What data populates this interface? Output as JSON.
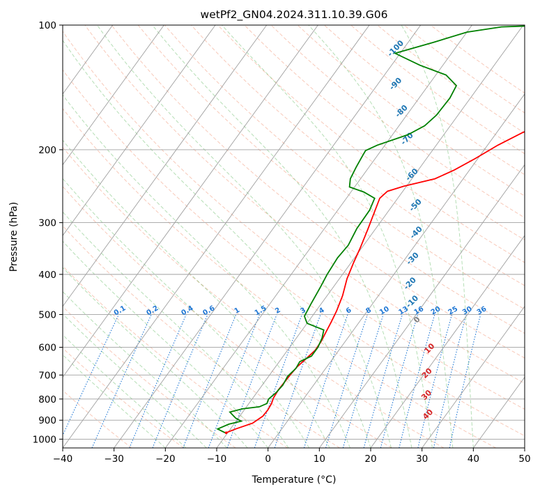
{
  "chart_data": {
    "type": "line",
    "title": "wetPf2_GN04.2024.311.10.39.G06",
    "xlabel": "Temperature (°C)",
    "ylabel": "Pressure (hPa)",
    "xlim": [
      -40,
      50
    ],
    "ylim_pressure": [
      1050,
      100
    ],
    "log_pressure_axis": true,
    "grid": true,
    "x_ticks": [
      -40,
      -30,
      -20,
      -10,
      0,
      10,
      20,
      30,
      40,
      50
    ],
    "x_tick_labels": [
      "−40",
      "−30",
      "−20",
      "−10",
      "0",
      "10",
      "20",
      "30",
      "40",
      "50"
    ],
    "y_ticks": [
      100,
      200,
      300,
      400,
      500,
      600,
      700,
      800,
      900,
      1000
    ],
    "y_tick_labels": [
      "100",
      "200",
      "300",
      "400",
      "500",
      "600",
      "700",
      "800",
      "900",
      "1000"
    ],
    "colors": {
      "temperature": "#ff0000",
      "dewpoint": "#008000",
      "isotherm_grid": "#a0a0a0",
      "dry_adiabat": "#f4a58a",
      "moist_adiabat": "#2ca02c",
      "mixing_ratio": "#1f77d4",
      "moist_label": "#1f77b4",
      "dry_label": "#d62728",
      "wetbulb": "#808080"
    },
    "series": [
      {
        "key": "temperature",
        "color": "#ff0000",
        "points": [
          [
            -10.3,
            965
          ],
          [
            -9,
            945
          ],
          [
            -6.5,
            915
          ],
          [
            -5.5,
            880
          ],
          [
            -5.4,
            850
          ],
          [
            -5.6,
            820
          ],
          [
            -6.0,
            795
          ],
          [
            -6.2,
            760
          ],
          [
            -6.0,
            700
          ],
          [
            -5.8,
            670
          ],
          [
            -5.2,
            640
          ],
          [
            -4.6,
            610
          ],
          [
            -4.7,
            580
          ],
          [
            -5.1,
            550
          ],
          [
            -5.5,
            520
          ],
          [
            -6.0,
            490
          ],
          [
            -7.0,
            450
          ],
          [
            -8.5,
            410
          ],
          [
            -9.5,
            375
          ],
          [
            -10.3,
            345
          ],
          [
            -11.5,
            310
          ],
          [
            -12.5,
            285
          ],
          [
            -13.5,
            262
          ],
          [
            -13.0,
            252
          ],
          [
            -10.5,
            245
          ],
          [
            -5.5,
            235
          ],
          [
            -3.0,
            224
          ],
          [
            -0.5,
            210
          ],
          [
            2.0,
            195
          ],
          [
            5.0,
            182
          ],
          [
            10.0,
            165
          ],
          [
            17.0,
            149
          ],
          [
            25.0,
            136
          ],
          [
            33.0,
            125
          ],
          [
            40.0,
            116
          ],
          [
            45.0,
            108
          ],
          [
            47.5,
            103
          ],
          [
            48.5,
            100
          ]
        ]
      },
      {
        "key": "dewpoint",
        "color": "#008000",
        "points": [
          [
            -10.5,
            965
          ],
          [
            -12.5,
            945
          ],
          [
            -11.0,
            920
          ],
          [
            -9.0,
            905
          ],
          [
            -10.5,
            890
          ],
          [
            -12.5,
            860
          ],
          [
            -10.5,
            845
          ],
          [
            -7.5,
            835
          ],
          [
            -6.5,
            820
          ],
          [
            -6.8,
            800
          ],
          [
            -6.2,
            770
          ],
          [
            -6.0,
            740
          ],
          [
            -6.3,
            705
          ],
          [
            -5.8,
            675
          ],
          [
            -6.0,
            650
          ],
          [
            -4.5,
            630
          ],
          [
            -4.5,
            600
          ],
          [
            -5.0,
            570
          ],
          [
            -5.8,
            545
          ],
          [
            -10.0,
            525
          ],
          [
            -11.5,
            505
          ],
          [
            -12.0,
            470
          ],
          [
            -12.5,
            430
          ],
          [
            -13.0,
            400
          ],
          [
            -13.3,
            365
          ],
          [
            -13.0,
            340
          ],
          [
            -13.7,
            310
          ],
          [
            -13.8,
            280
          ],
          [
            -14.5,
            262
          ],
          [
            -17.5,
            253
          ],
          [
            -21.0,
            246
          ],
          [
            -22.0,
            235
          ],
          [
            -22.5,
            220
          ],
          [
            -22.8,
            209
          ],
          [
            -23.0,
            201
          ],
          [
            -21.5,
            195
          ],
          [
            -17.0,
            184
          ],
          [
            -15.0,
            175
          ],
          [
            -14.2,
            165
          ],
          [
            -14.0,
            150
          ],
          [
            -14.5,
            140
          ],
          [
            -18.0,
            132
          ],
          [
            -24.5,
            125
          ],
          [
            -31.0,
            117
          ],
          [
            -25.0,
            110
          ],
          [
            -20.0,
            104
          ],
          [
            -14.0,
            101
          ],
          [
            -4.0,
            100
          ]
        ]
      }
    ],
    "moist_adiabat_labels": [
      "-100",
      "-90",
      "-80",
      "-70",
      "-60",
      "-50",
      "-40",
      "-30",
      "-20",
      "-10"
    ],
    "mixing_ratio_labels": [
      "0.1",
      "0.2",
      "0.4",
      "0.6",
      "1",
      "1.5",
      "2",
      "3",
      "4",
      "6",
      "8",
      "10",
      "13",
      "16",
      "20",
      "25",
      "30",
      "36"
    ],
    "dry_adiabat_labels": [
      "10",
      "20",
      "30",
      "40"
    ],
    "wetbulb_label": "0"
  }
}
